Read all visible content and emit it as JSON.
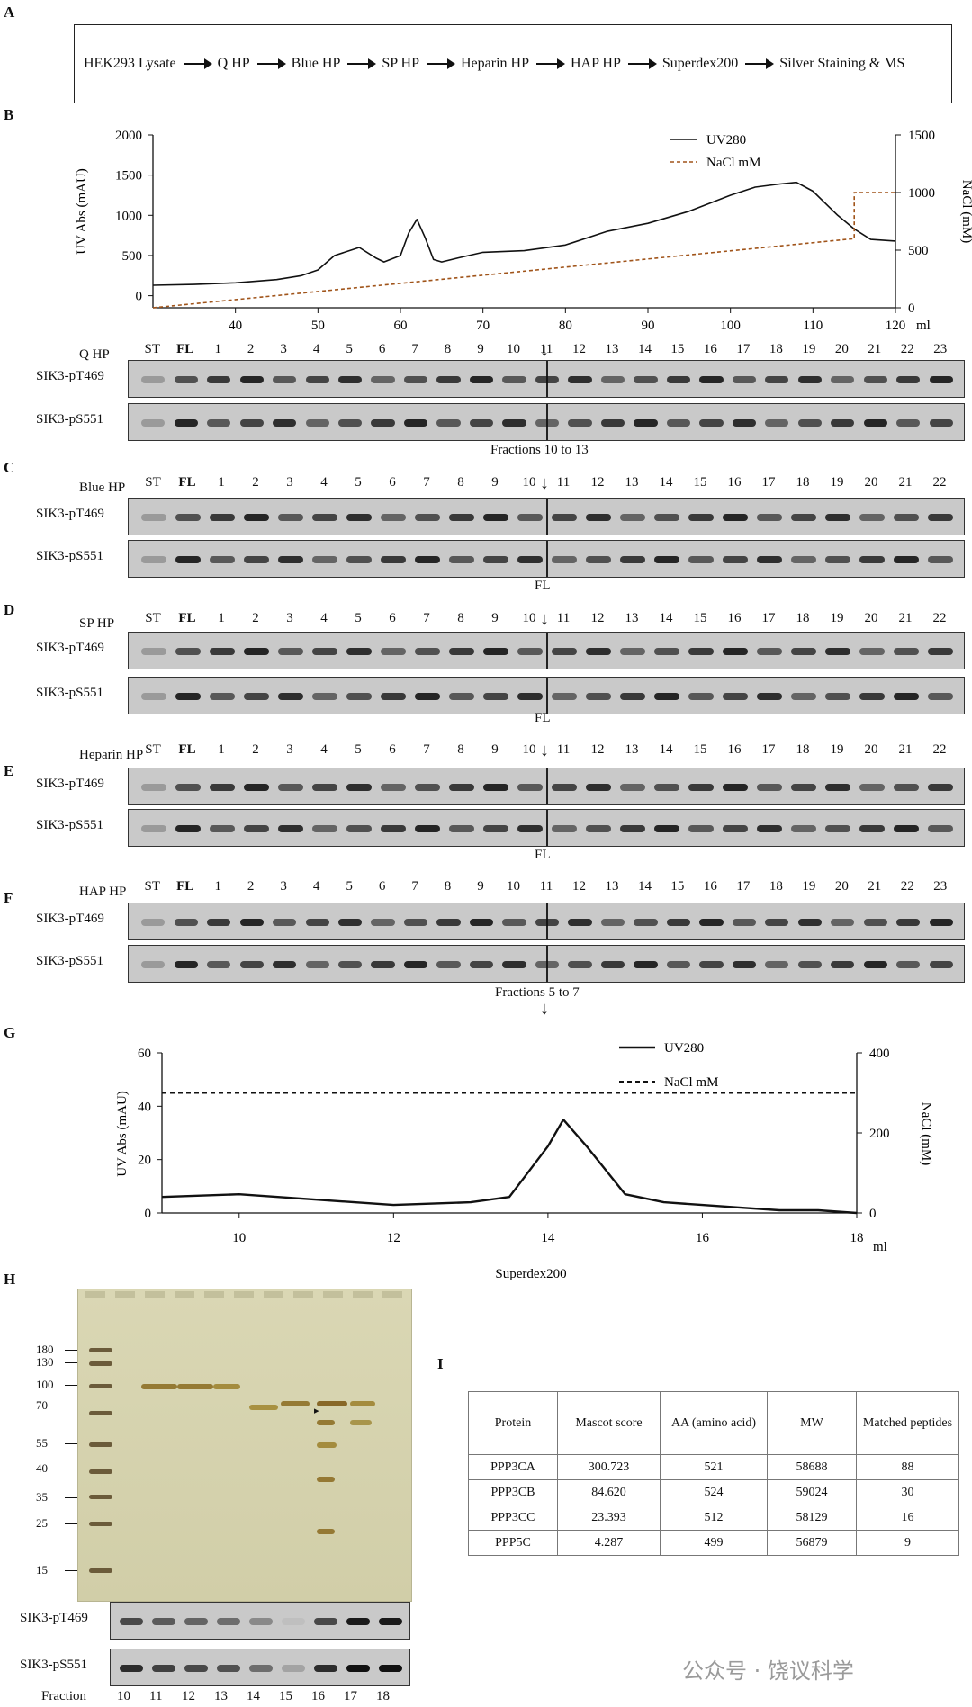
{
  "panel_labels": [
    "A",
    "B",
    "C",
    "D",
    "E",
    "F",
    "G",
    "H",
    "I"
  ],
  "flow": [
    "HEK293 Lysate",
    "Q HP",
    "Blue HP",
    "SP HP",
    "Heparin  HP",
    "HAP HP",
    "Superdex200",
    "Silver Staining & MS"
  ],
  "chart_b": {
    "y_left_label": "UV Abs (mAU)",
    "y_right_label": "NaCl (mM)",
    "x_unit": "ml",
    "legend": [
      "UV280",
      "NaCl mM"
    ],
    "y_left_ticks": [
      "2000",
      "1500",
      "1000",
      "500",
      "0"
    ],
    "y_right_ticks": [
      "1500",
      "1000",
      "500",
      "0"
    ],
    "x_ticks": [
      "40",
      "50",
      "60",
      "70",
      "80",
      "90",
      "100",
      "110",
      "120"
    ]
  },
  "chart_g": {
    "y_left_label": "UV Abs (mAU)",
    "y_right_label": "NaCl (mM)",
    "x_unit": "ml",
    "xlabel": "Superdex200",
    "legend": [
      "UV280",
      "NaCl mM"
    ],
    "y_left_ticks": [
      "60",
      "40",
      "20",
      "0"
    ],
    "y_right_ticks": [
      "400",
      "200",
      "0"
    ],
    "x_ticks": [
      "10",
      "12",
      "14",
      "16",
      "18"
    ]
  },
  "chart_data": [
    {
      "type": "line",
      "series": [
        {
          "name": "UV280",
          "x": [
            30,
            35,
            40,
            45,
            48,
            50,
            52,
            55,
            57,
            58,
            60,
            61,
            62,
            63,
            64,
            65,
            67,
            70,
            75,
            80,
            85,
            90,
            95,
            100,
            103,
            106,
            108,
            110,
            113,
            115,
            117,
            120
          ],
          "y": [
            130,
            140,
            160,
            200,
            250,
            320,
            500,
            600,
            470,
            420,
            500,
            780,
            950,
            720,
            450,
            420,
            470,
            540,
            560,
            630,
            800,
            900,
            1050,
            1250,
            1350,
            1390,
            1410,
            1300,
            1000,
            830,
            700,
            680
          ]
        },
        {
          "name": "NaCl mM",
          "x": [
            30,
            115,
            115,
            120
          ],
          "y": [
            0,
            600,
            1000,
            1000
          ]
        }
      ],
      "xlim": [
        30,
        120
      ],
      "ylim": [
        -150,
        2000
      ],
      "y2lim": [
        0,
        1500
      ]
    },
    {
      "type": "line",
      "series": [
        {
          "name": "UV280",
          "x": [
            9,
            10,
            11,
            12,
            13,
            13.5,
            14,
            14.2,
            14.5,
            15,
            15.5,
            16,
            16.5,
            17,
            17.5,
            18
          ],
          "y": [
            6,
            7,
            5,
            3,
            4,
            6,
            25,
            35,
            25,
            7,
            4,
            3,
            2,
            1,
            1,
            0
          ]
        },
        {
          "name": "NaCl mM",
          "x": [
            9,
            18
          ],
          "y": [
            300,
            300
          ]
        }
      ],
      "xlim": [
        9,
        18
      ],
      "ylim": [
        0,
        60
      ],
      "y2lim": [
        0,
        400
      ]
    }
  ],
  "blots": {
    "Q": {
      "label": "Q HP",
      "lanes": [
        "ST",
        "FL",
        "1",
        "2",
        "3",
        "4",
        "5",
        "6",
        "7",
        "8",
        "9",
        "10",
        "11",
        "12",
        "13",
        "14",
        "15",
        "16",
        "17",
        "18",
        "19",
        "20",
        "21",
        "22",
        "23"
      ],
      "rows": [
        "SIK3-pT469",
        "SIK3-pS551"
      ],
      "note": "Fractions 10 to 13"
    },
    "C": {
      "label": "Blue HP",
      "lanes": [
        "ST",
        "FL",
        "1",
        "2",
        "3",
        "4",
        "5",
        "6",
        "7",
        "8",
        "9",
        "10",
        "11",
        "12",
        "13",
        "14",
        "15",
        "16",
        "17",
        "18",
        "19",
        "20",
        "21",
        "22"
      ],
      "rows": [
        "SIK3-pT469",
        "SIK3-pS551"
      ],
      "note": "FL"
    },
    "D": {
      "label": "SP HP",
      "lanes": [
        "ST",
        "FL",
        "1",
        "2",
        "3",
        "4",
        "5",
        "6",
        "7",
        "8",
        "9",
        "10",
        "11",
        "12",
        "13",
        "14",
        "15",
        "16",
        "17",
        "18",
        "19",
        "20",
        "21",
        "22"
      ],
      "rows": [
        "SIK3-pT469",
        "SIK3-pS551"
      ],
      "note": "FL"
    },
    "E": {
      "label": "Heparin HP",
      "lanes": [
        "ST",
        "FL",
        "1",
        "2",
        "3",
        "4",
        "5",
        "6",
        "7",
        "8",
        "9",
        "10",
        "11",
        "12",
        "13",
        "14",
        "15",
        "16",
        "17",
        "18",
        "19",
        "20",
        "21",
        "22"
      ],
      "rows": [
        "SIK3-pT469",
        "SIK3-pS551"
      ],
      "note": "FL"
    },
    "F": {
      "label": "HAP HP",
      "lanes": [
        "ST",
        "FL",
        "1",
        "2",
        "3",
        "4",
        "5",
        "6",
        "7",
        "8",
        "9",
        "10",
        "11",
        "12",
        "13",
        "14",
        "15",
        "16",
        "17",
        "18",
        "19",
        "20",
        "21",
        "22",
        "23"
      ],
      "rows": [
        "SIK3-pT469",
        "SIK3-pS551"
      ],
      "note": "Fractions 5 to 7"
    }
  },
  "gel_h": {
    "markers": [
      "180",
      "130",
      "100",
      "70",
      "55",
      "40",
      "35",
      "25",
      "15"
    ],
    "rows": [
      "SIK3-pT469",
      "SIK3-pS551"
    ],
    "fraction_label": "Fraction",
    "fractions": [
      "10",
      "11",
      "12",
      "13",
      "14",
      "15",
      "16",
      "17",
      "18"
    ]
  },
  "table_i": {
    "headers": [
      "Protein",
      "Mascot score",
      "AA (amino acid)",
      "MW",
      "Matched peptides"
    ],
    "rows": [
      [
        "PPP3CA",
        "300.723",
        "521",
        "58688",
        "88"
      ],
      [
        "PPP3CB",
        "84.620",
        "524",
        "59024",
        "30"
      ],
      [
        "PPP3CC",
        "23.393",
        "512",
        "58129",
        "16"
      ],
      [
        "PPP5C",
        "4.287",
        "499",
        "56879",
        "9"
      ]
    ]
  },
  "watermark": "公众号 · 饶议科学"
}
